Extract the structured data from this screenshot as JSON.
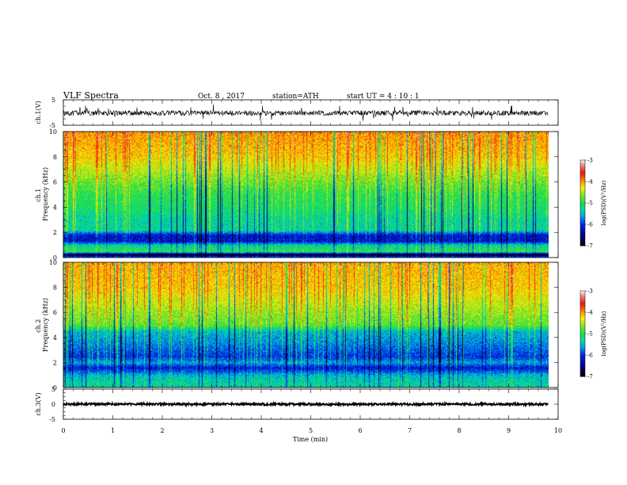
{
  "header": {
    "title": "VLF  Spectra",
    "date": "Oct. 8  , 2017",
    "station": "station=ATH",
    "start": "start  UT  =   4  : 10 : 1"
  },
  "chart_data": [
    {
      "id": "ch1-waveform",
      "type": "line",
      "ylabel": "ch.1(V)",
      "ylim": [
        -5,
        5
      ],
      "yticks": [
        "5",
        "-5"
      ],
      "xlim": [
        0,
        10
      ],
      "data_end_min": 9.8,
      "typical_level_v": 0,
      "noise_band_v": [
        -1.2,
        0.8
      ],
      "spikes": "frequent impulsive spikes up to about +/-3 V"
    },
    {
      "id": "ch1-spectrogram",
      "type": "heatmap",
      "ylabel": "ch.1\nFrequency  (kHz)",
      "ylim": [
        0,
        10
      ],
      "yticks": [
        "0",
        "2",
        "4",
        "6",
        "8",
        "10"
      ],
      "xlim": [
        0,
        10
      ],
      "data_end_min": 9.8,
      "colorbar": {
        "label": "log(PSD)(V²/Hz)",
        "range": [
          -7,
          -3
        ],
        "ticks": [
          "-3",
          "-4",
          "-5",
          "-6",
          "-7"
        ]
      },
      "profile_khz": [
        0,
        0.25,
        0.5,
        1.0,
        1.3,
        1.8,
        2.2,
        3.0,
        4.0,
        5.0,
        6.5,
        8.0,
        10.0
      ],
      "profile_log_psd": [
        -5.5,
        -7.0,
        -5.0,
        -5.3,
        -6.2,
        -6.2,
        -5.3,
        -5.3,
        -5.1,
        -5.0,
        -4.6,
        -4.2,
        -4.0
      ]
    },
    {
      "id": "ch2-spectrogram",
      "type": "heatmap",
      "ylabel": "ch.2\nFrequency  (kHz)",
      "ylim": [
        0,
        10
      ],
      "yticks": [
        "0",
        "2",
        "4",
        "6",
        "8",
        "10"
      ],
      "xlim": [
        0,
        10
      ],
      "data_end_min": 9.8,
      "colorbar": {
        "label": "log(PSD)(V²/Hz)",
        "range": [
          -7,
          -3
        ],
        "ticks": [
          "-3",
          "-4",
          "-5",
          "-6",
          "-7"
        ]
      },
      "profile_khz": [
        0,
        0.3,
        1.0,
        1.6,
        2.0,
        2.5,
        3.5,
        4.5,
        5.0,
        6.5,
        8.0,
        10.0
      ],
      "profile_log_psd": [
        -5.4,
        -5.3,
        -5.5,
        -6.2,
        -5.6,
        -6.0,
        -5.7,
        -5.5,
        -4.8,
        -4.5,
        -4.2,
        -4.1
      ]
    },
    {
      "id": "ch3-waveform",
      "type": "line",
      "ylabel": "ch.3(V)",
      "ylim": [
        -5,
        5
      ],
      "yticks": [
        "5",
        "0",
        "-5"
      ],
      "xlim": [
        0,
        10
      ],
      "data_end_min": 9.8,
      "typical_level_v": 0,
      "noise_band_v": [
        -0.35,
        0.35
      ]
    }
  ],
  "xaxis": {
    "label": "Time  (min)",
    "ticks": [
      "0",
      "1",
      "2",
      "3",
      "4",
      "5",
      "6",
      "7",
      "8",
      "9",
      "10"
    ]
  }
}
